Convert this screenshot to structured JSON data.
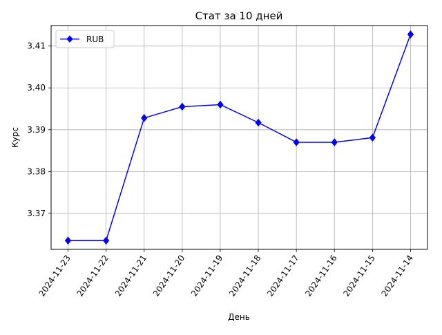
{
  "chart_data": {
    "type": "line",
    "title": "Стат за 10 дней",
    "xlabel": "День",
    "ylabel": "Курс",
    "categories": [
      "2024-11-23",
      "2024-11-22",
      "2024-11-21",
      "2024-11-20",
      "2024-11-19",
      "2024-11-18",
      "2024-11-17",
      "2024-11-16",
      "2024-11-15",
      "2024-11-14"
    ],
    "series": [
      {
        "name": "RUB",
        "color": "#0000ff",
        "marker": "diamond",
        "values": [
          3.3635,
          3.3635,
          3.3928,
          3.3955,
          3.396,
          3.3917,
          3.387,
          3.387,
          3.3881,
          3.4128
        ]
      }
    ],
    "yticks": [
      "3.37",
      "3.38",
      "3.39",
      "3.40",
      "3.41"
    ],
    "ylim": [
      3.3614,
      3.4149
    ],
    "grid": true,
    "legend_position": "top-left"
  }
}
